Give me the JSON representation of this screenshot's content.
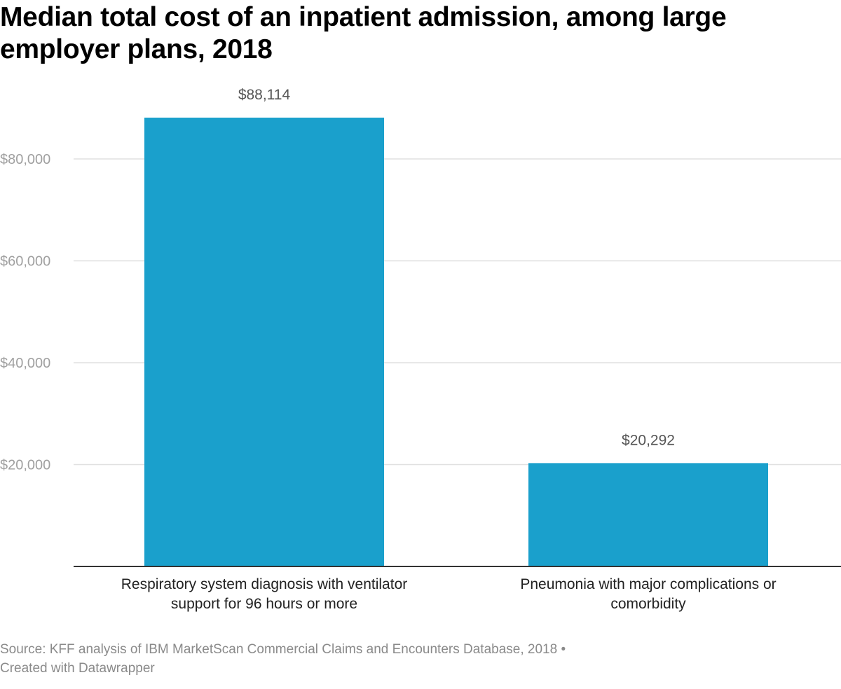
{
  "title": "Median total cost of an inpatient admission, among large employer plans, 2018",
  "footer": {
    "source": "Source: KFF analysis of IBM MarketScan Commercial Claims and Encounters Database, 2018",
    "separator": "•",
    "credit": "Created with Datawrapper"
  },
  "colors": {
    "bar": "#1aa0cc",
    "grid": "#e0e0e0",
    "axis": "#333333",
    "tick_label": "#a0a0a0",
    "value_label": "#555555",
    "category_label": "#222222"
  },
  "chart_data": {
    "type": "bar",
    "title": "Median total cost of an inpatient admission, among large employer plans, 2018",
    "xlabel": "",
    "ylabel": "",
    "categories": [
      [
        "Respiratory system diagnosis with ventilator",
        "support for 96 hours or more"
      ],
      [
        "Pneumonia with major complications or",
        "comorbidity"
      ]
    ],
    "values": [
      88114,
      20292
    ],
    "value_labels": [
      "$88,114",
      "$20,292"
    ],
    "ylim": [
      0,
      88114
    ],
    "yticks": [
      20000,
      40000,
      60000,
      80000
    ],
    "ytick_labels": [
      "$20,000",
      "$40,000",
      "$60,000",
      "$80,000"
    ],
    "grid": true,
    "legend": "none"
  }
}
